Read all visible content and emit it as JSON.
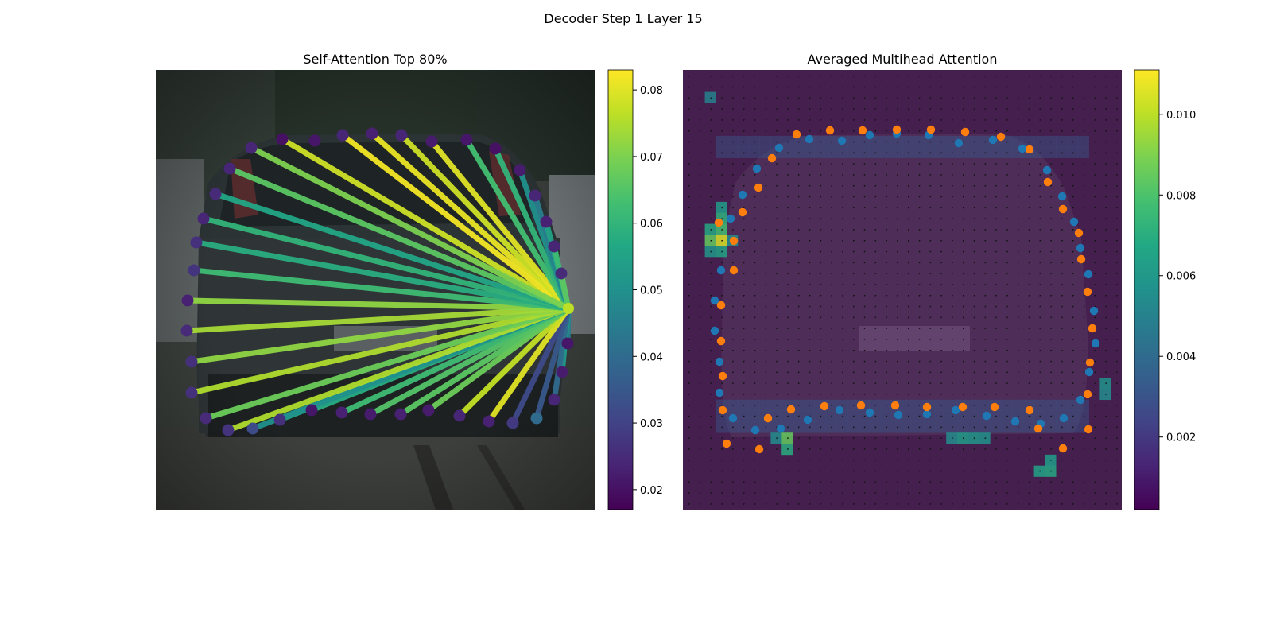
{
  "figure": {
    "title": "Decoder Step 1 Layer 15"
  },
  "chart_data": [
    {
      "type": "network",
      "title": "Self-Attention Top 80%",
      "colormap": "viridis",
      "colorbar": {
        "range": [
          0.017,
          0.083
        ],
        "ticks": [
          "0.02",
          "0.03",
          "0.04",
          "0.05",
          "0.06",
          "0.07",
          "0.08"
        ],
        "tick_values": [
          0.02,
          0.03,
          0.04,
          0.05,
          0.06,
          0.07,
          0.08
        ]
      },
      "background": "car rear photo",
      "source_point": [
        715,
        388
      ],
      "points": [
        {
          "x": 355,
          "y": 175,
          "c": 0.02
        },
        {
          "x": 396,
          "y": 177,
          "c": 0.021
        },
        {
          "x": 431,
          "y": 170,
          "c": 0.024
        },
        {
          "x": 468,
          "y": 168,
          "c": 0.023
        },
        {
          "x": 505,
          "y": 170,
          "c": 0.024
        },
        {
          "x": 543,
          "y": 178,
          "c": 0.022
        },
        {
          "x": 587,
          "y": 176,
          "c": 0.021
        },
        {
          "x": 623,
          "y": 187,
          "c": 0.02
        },
        {
          "x": 654,
          "y": 214,
          "c": 0.022
        },
        {
          "x": 673,
          "y": 246,
          "c": 0.024
        },
        {
          "x": 687,
          "y": 279,
          "c": 0.023
        },
        {
          "x": 697,
          "y": 310,
          "c": 0.024
        },
        {
          "x": 706,
          "y": 344,
          "c": 0.025
        },
        {
          "x": 714,
          "y": 432,
          "c": 0.021
        },
        {
          "x": 707,
          "y": 468,
          "c": 0.022
        },
        {
          "x": 697,
          "y": 503,
          "c": 0.024
        },
        {
          "x": 675,
          "y": 526,
          "c": 0.04
        },
        {
          "x": 645,
          "y": 532,
          "c": 0.028
        },
        {
          "x": 615,
          "y": 530,
          "c": 0.023
        },
        {
          "x": 578,
          "y": 523,
          "c": 0.024
        },
        {
          "x": 539,
          "y": 516,
          "c": 0.022
        },
        {
          "x": 504,
          "y": 521,
          "c": 0.023
        },
        {
          "x": 466,
          "y": 521,
          "c": 0.022
        },
        {
          "x": 430,
          "y": 519,
          "c": 0.023
        },
        {
          "x": 392,
          "y": 516,
          "c": 0.021
        },
        {
          "x": 352,
          "y": 528,
          "c": 0.026
        },
        {
          "x": 318,
          "y": 539,
          "c": 0.032
        },
        {
          "x": 287,
          "y": 541,
          "c": 0.027
        },
        {
          "x": 259,
          "y": 526,
          "c": 0.025
        },
        {
          "x": 241,
          "y": 494,
          "c": 0.026
        },
        {
          "x": 241,
          "y": 455,
          "c": 0.026
        },
        {
          "x": 235,
          "y": 416,
          "c": 0.025
        },
        {
          "x": 236,
          "y": 378,
          "c": 0.023
        },
        {
          "x": 244,
          "y": 340,
          "c": 0.027
        },
        {
          "x": 247,
          "y": 305,
          "c": 0.026
        },
        {
          "x": 256,
          "y": 275,
          "c": 0.024
        },
        {
          "x": 271,
          "y": 244,
          "c": 0.025
        },
        {
          "x": 289,
          "y": 212,
          "c": 0.024
        },
        {
          "x": 316,
          "y": 186,
          "c": 0.024
        }
      ],
      "edges": [
        {
          "to": [
            355,
            175
          ],
          "c": 0.078
        },
        {
          "to": [
            431,
            170
          ],
          "c": 0.082
        },
        {
          "to": [
            468,
            168
          ],
          "c": 0.081
        },
        {
          "to": [
            505,
            170
          ],
          "c": 0.078
        },
        {
          "to": [
            543,
            178
          ],
          "c": 0.08
        },
        {
          "to": [
            587,
            176
          ],
          "c": 0.063
        },
        {
          "to": [
            623,
            187
          ],
          "c": 0.06
        },
        {
          "to": [
            654,
            214
          ],
          "c": 0.05
        },
        {
          "to": [
            673,
            246
          ],
          "c": 0.045
        },
        {
          "to": [
            687,
            279
          ],
          "c": 0.055
        },
        {
          "to": [
            697,
            310
          ],
          "c": 0.062
        },
        {
          "to": [
            706,
            344
          ],
          "c": 0.066
        },
        {
          "to": [
            714,
            432
          ],
          "c": 0.045
        },
        {
          "to": [
            707,
            468
          ],
          "c": 0.052
        },
        {
          "to": [
            697,
            503
          ],
          "c": 0.04
        },
        {
          "to": [
            675,
            526
          ],
          "c": 0.035
        },
        {
          "to": [
            645,
            532
          ],
          "c": 0.032
        },
        {
          "to": [
            615,
            530
          ],
          "c": 0.08
        },
        {
          "to": [
            578,
            523
          ],
          "c": 0.077
        },
        {
          "to": [
            539,
            516
          ],
          "c": 0.068
        },
        {
          "to": [
            504,
            521
          ],
          "c": 0.066
        },
        {
          "to": [
            466,
            521
          ],
          "c": 0.065
        },
        {
          "to": [
            430,
            519
          ],
          "c": 0.062
        },
        {
          "to": [
            392,
            516
          ],
          "c": 0.058
        },
        {
          "to": [
            352,
            528
          ],
          "c": 0.054
        },
        {
          "to": [
            318,
            539
          ],
          "c": 0.05
        },
        {
          "to": [
            287,
            541
          ],
          "c": 0.075
        },
        {
          "to": [
            259,
            526
          ],
          "c": 0.068
        },
        {
          "to": [
            241,
            494
          ],
          "c": 0.075
        },
        {
          "to": [
            241,
            455
          ],
          "c": 0.072
        },
        {
          "to": [
            235,
            416
          ],
          "c": 0.074
        },
        {
          "to": [
            236,
            378
          ],
          "c": 0.072
        },
        {
          "to": [
            244,
            340
          ],
          "c": 0.062
        },
        {
          "to": [
            247,
            305
          ],
          "c": 0.058
        },
        {
          "to": [
            256,
            275
          ],
          "c": 0.06
        },
        {
          "to": [
            271,
            244
          ],
          "c": 0.056
        },
        {
          "to": [
            289,
            212
          ],
          "c": 0.066
        },
        {
          "to": [
            316,
            186
          ],
          "c": 0.07
        }
      ]
    },
    {
      "type": "heatmap",
      "title": "Averaged Multihead Attention",
      "colormap": "viridis",
      "grid": {
        "cols": 40,
        "rows": 40
      },
      "colorbar": {
        "range": [
          0.0002,
          0.0111
        ],
        "ticks": [
          "0.002",
          "0.004",
          "0.006",
          "0.008",
          "0.010"
        ],
        "tick_values": [
          0.002,
          0.004,
          0.006,
          0.008,
          0.01
        ]
      },
      "background": "car rear photo (grayscale, darkened)",
      "hotspots": [
        {
          "col": 3,
          "row": 15,
          "v": 0.0105
        },
        {
          "col": 2,
          "row": 15,
          "v": 0.0085
        },
        {
          "col": 3,
          "row": 14,
          "v": 0.0078
        },
        {
          "col": 3,
          "row": 13,
          "v": 0.0072
        },
        {
          "col": 2,
          "row": 14,
          "v": 0.0068
        },
        {
          "col": 2,
          "row": 16,
          "v": 0.006
        },
        {
          "col": 3,
          "row": 16,
          "v": 0.0065
        },
        {
          "col": 3,
          "row": 12,
          "v": 0.0062
        },
        {
          "col": 4,
          "row": 15,
          "v": 0.0055
        },
        {
          "col": 9,
          "row": 33,
          "v": 0.0085
        },
        {
          "col": 9,
          "row": 34,
          "v": 0.007
        },
        {
          "col": 8,
          "row": 33,
          "v": 0.0055
        },
        {
          "col": 25,
          "row": 33,
          "v": 0.0062
        },
        {
          "col": 26,
          "row": 33,
          "v": 0.006
        },
        {
          "col": 24,
          "row": 33,
          "v": 0.0055
        },
        {
          "col": 27,
          "row": 33,
          "v": 0.0058
        },
        {
          "col": 33,
          "row": 36,
          "v": 0.0068
        },
        {
          "col": 32,
          "row": 36,
          "v": 0.0065
        },
        {
          "col": 33,
          "row": 35,
          "v": 0.0062
        },
        {
          "col": 38,
          "row": 28,
          "v": 0.0058
        },
        {
          "col": 38,
          "row": 29,
          "v": 0.0055
        },
        {
          "col": 2,
          "row": 2,
          "v": 0.005
        }
      ],
      "series_blue": [
        [
          919,
          275
        ],
        [
          934,
          245
        ],
        [
          952,
          212
        ],
        [
          980,
          186
        ],
        [
          1018,
          175
        ],
        [
          1059,
          177
        ],
        [
          1094,
          170
        ],
        [
          1128,
          168
        ],
        [
          1168,
          170
        ],
        [
          1206,
          180
        ],
        [
          1249,
          176
        ],
        [
          1286,
          187
        ],
        [
          1317,
          214
        ],
        [
          1336,
          247
        ],
        [
          1351,
          279
        ],
        [
          1359,
          312
        ],
        [
          1369,
          345
        ],
        [
          1376,
          391
        ],
        [
          1378,
          432
        ],
        [
          1370,
          468
        ],
        [
          1359,
          503
        ],
        [
          1338,
          526
        ],
        [
          1309,
          533
        ],
        [
          1277,
          530
        ],
        [
          1241,
          523
        ],
        [
          1202,
          516
        ],
        [
          1166,
          521
        ],
        [
          1130,
          522
        ],
        [
          1094,
          519
        ],
        [
          1056,
          516
        ],
        [
          1016,
          528
        ],
        [
          982,
          539
        ],
        [
          950,
          541
        ],
        [
          922,
          526
        ],
        [
          905,
          494
        ],
        [
          905,
          455
        ],
        [
          899,
          416
        ],
        [
          899,
          378
        ],
        [
          907,
          340
        ]
      ],
      "series_orange": [
        [
          1002,
          169
        ],
        [
          1044,
          164
        ],
        [
          1085,
          164
        ],
        [
          1128,
          163
        ],
        [
          1171,
          163
        ],
        [
          1214,
          166
        ],
        [
          1259,
          172
        ],
        [
          1295,
          188
        ],
        [
          1318,
          229
        ],
        [
          1337,
          263
        ],
        [
          1357,
          293
        ],
        [
          1360,
          326
        ],
        [
          1368,
          367
        ],
        [
          1374,
          413
        ],
        [
          1371,
          456
        ],
        [
          1368,
          496
        ],
        [
          1369,
          540
        ],
        [
          1337,
          564
        ],
        [
          1306,
          539
        ],
        [
          1295,
          516
        ],
        [
          1251,
          512
        ],
        [
          1211,
          512
        ],
        [
          1166,
          512
        ],
        [
          1126,
          510
        ],
        [
          1083,
          510
        ],
        [
          1037,
          511
        ],
        [
          995,
          515
        ],
        [
          966,
          526
        ],
        [
          955,
          565
        ],
        [
          914,
          558
        ],
        [
          909,
          516
        ],
        [
          909,
          473
        ],
        [
          907,
          429
        ],
        [
          907,
          384
        ],
        [
          923,
          340
        ],
        [
          923,
          303
        ],
        [
          904,
          280
        ],
        [
          934,
          267
        ],
        [
          954,
          236
        ],
        [
          971,
          199
        ]
      ]
    }
  ]
}
